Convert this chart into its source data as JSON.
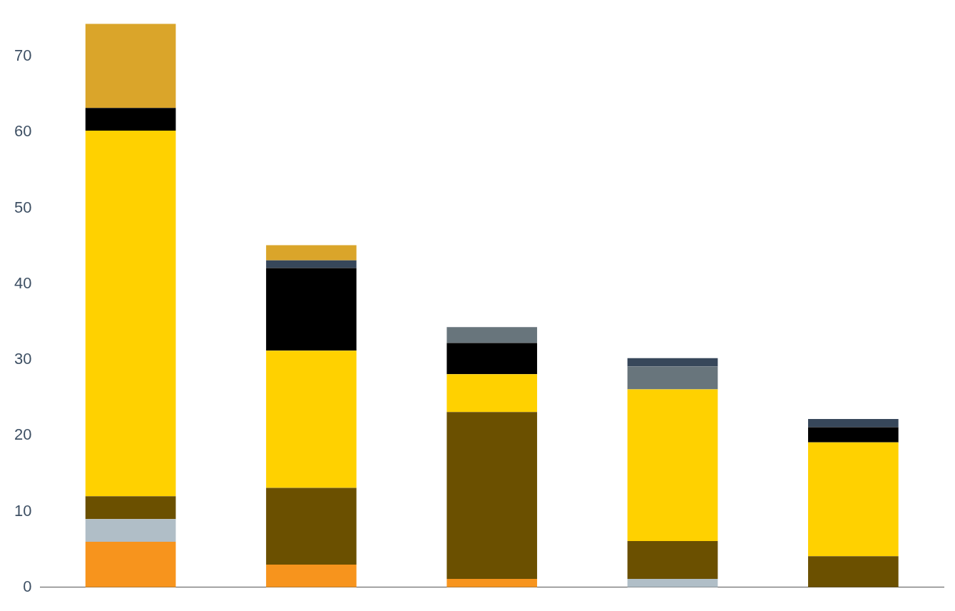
{
  "chart_data": {
    "type": "bar",
    "stacked": true,
    "categories": [
      null,
      null,
      null,
      null,
      null
    ],
    "series": [
      {
        "color": "#f7941d",
        "values": [
          6,
          3,
          1.1,
          null,
          null
        ]
      },
      {
        "color": "#b0bec7",
        "values": [
          3,
          null,
          null,
          1.1,
          null
        ]
      },
      {
        "color": "#6b5000",
        "values": [
          3,
          10.1,
          22,
          5,
          4.1
        ]
      },
      {
        "color": "#ffd100",
        "values": [
          48.2,
          18.1,
          5,
          20,
          15
        ]
      },
      {
        "color": "#000000",
        "values": [
          3,
          10.9,
          4.1,
          null,
          2
        ]
      },
      {
        "color": "#68757c",
        "values": [
          null,
          null,
          2.1,
          3,
          null
        ]
      },
      {
        "color": "#37475a",
        "values": [
          null,
          1,
          null,
          1.1,
          1.1
        ]
      },
      {
        "color": "#daa52a",
        "values": [
          11.1,
          2,
          null,
          null,
          null
        ]
      }
    ],
    "ylim": [
      0,
      74.3
    ],
    "yticks": [
      0,
      10,
      20,
      30,
      40,
      50,
      60,
      70
    ],
    "grid": false,
    "legend": false,
    "tick_labels": "y"
  }
}
